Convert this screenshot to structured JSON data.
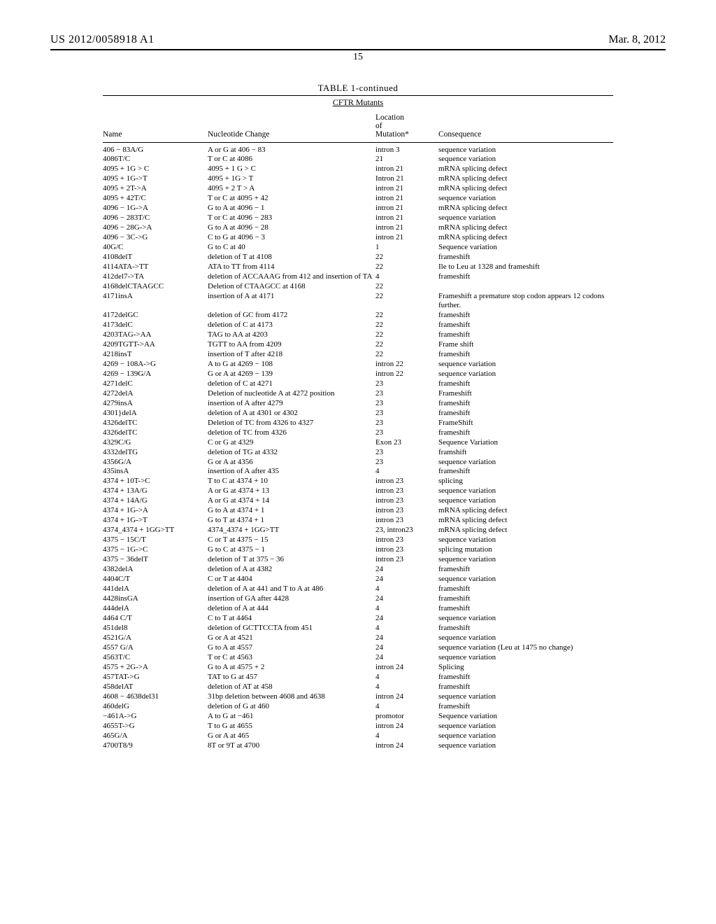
{
  "header": {
    "pub_number": "US 2012/0058918 A1",
    "pub_date": "Mar. 8, 2012",
    "page_number": "15"
  },
  "table": {
    "caption": "TABLE 1-continued",
    "sub_caption": "CFTR Mutants",
    "columns": [
      "Name",
      "Nucleotide Change",
      "Location of Mutation*",
      "Consequence"
    ],
    "rows": [
      [
        "406 − 83A/G",
        "A or G at 406 − 83",
        "intron 3",
        "sequence variation"
      ],
      [
        "4086T/C",
        "T or C at 4086",
        "21",
        "sequence variation"
      ],
      [
        "4095 + 1G > C",
        "4095 + 1 G > C",
        "intron 21",
        "mRNA splicing defect"
      ],
      [
        "4095 + 1G->T",
        "4095 + 1G > T",
        "Intron 21",
        "mRNA splicing defect"
      ],
      [
        "4095 + 2T->A",
        "4095 + 2 T > A",
        "intron 21",
        "mRNA splicing defect"
      ],
      [
        "4095 + 42T/C",
        "T or C at 4095 + 42",
        "intron 21",
        "sequence variation"
      ],
      [
        "4096 − 1G->A",
        "G to A at 4096 − 1",
        "intron 21",
        "mRNA splicing defect"
      ],
      [
        "4096 − 283T/C",
        "T or C at 4096 − 283",
        "intron 21",
        "sequence variation"
      ],
      [
        "4096 − 28G->A",
        "G to A at 4096 − 28",
        "intron 21",
        "mRNA splicing defect"
      ],
      [
        "4096 − 3C->G",
        "C to G at 4096 − 3",
        "intron 21",
        "mRNA splicing defect"
      ],
      [
        "40G/C",
        "G to C at 40",
        "1",
        "Sequence variation"
      ],
      [
        "4108delT",
        "deletion of T at 4108",
        "22",
        "frameshift"
      ],
      [
        "4114ATA->TT",
        "ATA to TT from 4114",
        "22",
        "Ile to Leu at 1328 and frameshift"
      ],
      [
        "412del7->TA",
        "deletion of ACCAAAG from 412 and insertion of TA",
        "4",
        "frameshift"
      ],
      [
        "4168delCTAAGCC",
        "Deletion of CTAAGCC at 4168",
        "22",
        ""
      ],
      [
        "4171insA",
        "insertion of A at 4171",
        "22",
        "Frameshift a premature stop codon appears 12 codons further."
      ],
      [
        "4172delGC",
        "deletion of GC from 4172",
        "22",
        "frameshift"
      ],
      [
        "4173delC",
        "deletion of C at 4173",
        "22",
        "frameshift"
      ],
      [
        "4203TAG->AA",
        "TAG to AA at 4203",
        "22",
        "frameshift"
      ],
      [
        "4209TGTT->AA",
        "TGTT to AA from 4209",
        "22",
        "Frame shift"
      ],
      [
        "4218insT",
        "insertion of T after 4218",
        "22",
        "frameshift"
      ],
      [
        "4269 − 108A->G",
        "A to G at 4269 − 108",
        "intron 22",
        "sequence variation"
      ],
      [
        "4269 − 139G/A",
        "G or A at 4269 − 139",
        "intron 22",
        "sequence variation"
      ],
      [
        "4271delC",
        "deletion of C at 4271",
        "23",
        "frameshift"
      ],
      [
        "4272delA",
        "Deletion of nucleotide A at 4272 position",
        "23",
        "Frameshift"
      ],
      [
        "4279insA",
        "insertion of A after 4279",
        "23",
        "frameshift"
      ],
      [
        "4301}delA",
        "deletion of A at 4301 or 4302",
        "23",
        "frameshift"
      ],
      [
        "4326delTC",
        "Deletion of TC from 4326 to 4327",
        "23",
        "FrameShift"
      ],
      [
        "4326delTC",
        "deletion of TC from 4326",
        "23",
        "frameshift"
      ],
      [
        "4329C/G",
        "C or G at 4329",
        "Exon 23",
        "Sequence Variation"
      ],
      [
        "4332delTG",
        "deletion of TG at 4332",
        "23",
        "framshift"
      ],
      [
        "4356G/A",
        "G or A at 4356",
        "23",
        "sequence variation"
      ],
      [
        "435insA",
        "insertion of A after 435",
        "4",
        "frameshift"
      ],
      [
        "4374 + 10T->C",
        "T to C at 4374 + 10",
        "intron 23",
        "splicing"
      ],
      [
        "4374 + 13A/G",
        "A or G at 4374 + 13",
        "intron 23",
        "sequence variation"
      ],
      [
        "4374 + 14A/G",
        "A or G at 4374 + 14",
        "intron 23",
        "sequence variation"
      ],
      [
        "4374 + 1G->A",
        "G to A at 4374 + 1",
        "intron 23",
        "mRNA splicing defect"
      ],
      [
        "4374 + 1G->T",
        "G to T at 4374 + 1",
        "intron 23",
        "mRNA splicing defect"
      ],
      [
        "4374_4374 + 1GG>TT",
        "4374_4374 + 1GG>TT",
        "23, intron23",
        "mRNA splicing defect"
      ],
      [
        "4375 − 15C/T",
        "C or T at 4375 − 15",
        "intron 23",
        "sequence variation"
      ],
      [
        "4375 − 1G->C",
        "G to C at 4375 − 1",
        "intron 23",
        "splicing mutation"
      ],
      [
        "4375 − 36delT",
        "deletion of T at 375 − 36",
        "intron 23",
        "sequence variation"
      ],
      [
        "4382delA",
        "deletion of A at 4382",
        "24",
        "frameshift"
      ],
      [
        "4404C/T",
        "C or T at 4404",
        "24",
        "sequence variation"
      ],
      [
        "441delA",
        "deletion of A at 441 and T to A at 486",
        "4",
        "frameshift"
      ],
      [
        "4428insGA",
        "insertion of GA after 4428",
        "24",
        "frameshift"
      ],
      [
        "444delA",
        "deletion of A at 444",
        "4",
        "frameshift"
      ],
      [
        "4464 C/T",
        "C to T at 4464",
        "24",
        "sequence variation"
      ],
      [
        "451del8",
        "deletion of GCTTCCTA from 451",
        "4",
        "frameshift"
      ],
      [
        "4521G/A",
        "G or A at 4521",
        "24",
        "sequence variation"
      ],
      [
        "4557 G/A",
        "G to A at 4557",
        "24",
        "sequence variation (Leu at 1475 no change)"
      ],
      [
        "4563T/C",
        "T or C at 4563",
        "24",
        "sequence variation"
      ],
      [
        "4575 + 2G->A",
        "G to A at 4575 + 2",
        "intron 24",
        "Splicing"
      ],
      [
        "457TAT->G",
        "TAT to G at 457",
        "4",
        "frameshift"
      ],
      [
        "458delAT",
        "deletion of AT at 458",
        "4",
        "frameshift"
      ],
      [
        "4608 − 4638del31",
        "31bp deletion between 4608 and 4638",
        "intron 24",
        "sequence variation"
      ],
      [
        "460delG",
        "deletion of G at 460",
        "4",
        "frameshift"
      ],
      [
        "−461A->G",
        "A to G at −461",
        "promotor",
        "Sequence variation"
      ],
      [
        "4655T->G",
        "T to G at 4655",
        "intron 24",
        "sequence variation"
      ],
      [
        "465G/A",
        "G or A at 465",
        "4",
        "sequence variation"
      ],
      [
        "4700T8/9",
        "8T or 9T at 4700",
        "intron 24",
        "sequence variation"
      ]
    ]
  }
}
